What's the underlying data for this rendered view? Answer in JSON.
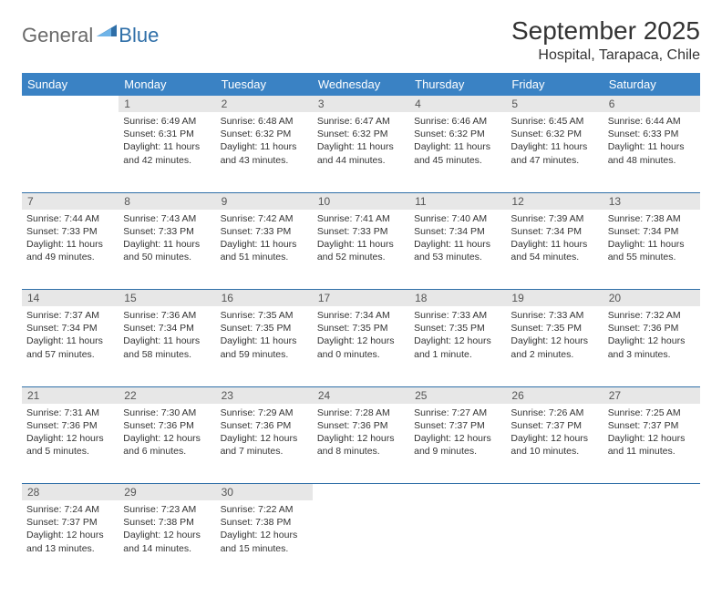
{
  "logo": {
    "text1": "General",
    "text2": "Blue"
  },
  "title": "September 2025",
  "location": "Hospital, Tarapaca, Chile",
  "colors": {
    "header_bg": "#3a82c4",
    "header_text": "#ffffff",
    "daynum_bg": "#e7e7e7",
    "rule": "#2f6fa8",
    "logo_gray": "#6a6a6a",
    "logo_blue": "#2f6fa8"
  },
  "weekdays": [
    "Sunday",
    "Monday",
    "Tuesday",
    "Wednesday",
    "Thursday",
    "Friday",
    "Saturday"
  ],
  "weeks": [
    [
      null,
      {
        "n": "1",
        "sr": "Sunrise: 6:49 AM",
        "ss": "Sunset: 6:31 PM",
        "d1": "Daylight: 11 hours",
        "d2": "and 42 minutes."
      },
      {
        "n": "2",
        "sr": "Sunrise: 6:48 AM",
        "ss": "Sunset: 6:32 PM",
        "d1": "Daylight: 11 hours",
        "d2": "and 43 minutes."
      },
      {
        "n": "3",
        "sr": "Sunrise: 6:47 AM",
        "ss": "Sunset: 6:32 PM",
        "d1": "Daylight: 11 hours",
        "d2": "and 44 minutes."
      },
      {
        "n": "4",
        "sr": "Sunrise: 6:46 AM",
        "ss": "Sunset: 6:32 PM",
        "d1": "Daylight: 11 hours",
        "d2": "and 45 minutes."
      },
      {
        "n": "5",
        "sr": "Sunrise: 6:45 AM",
        "ss": "Sunset: 6:32 PM",
        "d1": "Daylight: 11 hours",
        "d2": "and 47 minutes."
      },
      {
        "n": "6",
        "sr": "Sunrise: 6:44 AM",
        "ss": "Sunset: 6:33 PM",
        "d1": "Daylight: 11 hours",
        "d2": "and 48 minutes."
      }
    ],
    [
      {
        "n": "7",
        "sr": "Sunrise: 7:44 AM",
        "ss": "Sunset: 7:33 PM",
        "d1": "Daylight: 11 hours",
        "d2": "and 49 minutes."
      },
      {
        "n": "8",
        "sr": "Sunrise: 7:43 AM",
        "ss": "Sunset: 7:33 PM",
        "d1": "Daylight: 11 hours",
        "d2": "and 50 minutes."
      },
      {
        "n": "9",
        "sr": "Sunrise: 7:42 AM",
        "ss": "Sunset: 7:33 PM",
        "d1": "Daylight: 11 hours",
        "d2": "and 51 minutes."
      },
      {
        "n": "10",
        "sr": "Sunrise: 7:41 AM",
        "ss": "Sunset: 7:33 PM",
        "d1": "Daylight: 11 hours",
        "d2": "and 52 minutes."
      },
      {
        "n": "11",
        "sr": "Sunrise: 7:40 AM",
        "ss": "Sunset: 7:34 PM",
        "d1": "Daylight: 11 hours",
        "d2": "and 53 minutes."
      },
      {
        "n": "12",
        "sr": "Sunrise: 7:39 AM",
        "ss": "Sunset: 7:34 PM",
        "d1": "Daylight: 11 hours",
        "d2": "and 54 minutes."
      },
      {
        "n": "13",
        "sr": "Sunrise: 7:38 AM",
        "ss": "Sunset: 7:34 PM",
        "d1": "Daylight: 11 hours",
        "d2": "and 55 minutes."
      }
    ],
    [
      {
        "n": "14",
        "sr": "Sunrise: 7:37 AM",
        "ss": "Sunset: 7:34 PM",
        "d1": "Daylight: 11 hours",
        "d2": "and 57 minutes."
      },
      {
        "n": "15",
        "sr": "Sunrise: 7:36 AM",
        "ss": "Sunset: 7:34 PM",
        "d1": "Daylight: 11 hours",
        "d2": "and 58 minutes."
      },
      {
        "n": "16",
        "sr": "Sunrise: 7:35 AM",
        "ss": "Sunset: 7:35 PM",
        "d1": "Daylight: 11 hours",
        "d2": "and 59 minutes."
      },
      {
        "n": "17",
        "sr": "Sunrise: 7:34 AM",
        "ss": "Sunset: 7:35 PM",
        "d1": "Daylight: 12 hours",
        "d2": "and 0 minutes."
      },
      {
        "n": "18",
        "sr": "Sunrise: 7:33 AM",
        "ss": "Sunset: 7:35 PM",
        "d1": "Daylight: 12 hours",
        "d2": "and 1 minute."
      },
      {
        "n": "19",
        "sr": "Sunrise: 7:33 AM",
        "ss": "Sunset: 7:35 PM",
        "d1": "Daylight: 12 hours",
        "d2": "and 2 minutes."
      },
      {
        "n": "20",
        "sr": "Sunrise: 7:32 AM",
        "ss": "Sunset: 7:36 PM",
        "d1": "Daylight: 12 hours",
        "d2": "and 3 minutes."
      }
    ],
    [
      {
        "n": "21",
        "sr": "Sunrise: 7:31 AM",
        "ss": "Sunset: 7:36 PM",
        "d1": "Daylight: 12 hours",
        "d2": "and 5 minutes."
      },
      {
        "n": "22",
        "sr": "Sunrise: 7:30 AM",
        "ss": "Sunset: 7:36 PM",
        "d1": "Daylight: 12 hours",
        "d2": "and 6 minutes."
      },
      {
        "n": "23",
        "sr": "Sunrise: 7:29 AM",
        "ss": "Sunset: 7:36 PM",
        "d1": "Daylight: 12 hours",
        "d2": "and 7 minutes."
      },
      {
        "n": "24",
        "sr": "Sunrise: 7:28 AM",
        "ss": "Sunset: 7:36 PM",
        "d1": "Daylight: 12 hours",
        "d2": "and 8 minutes."
      },
      {
        "n": "25",
        "sr": "Sunrise: 7:27 AM",
        "ss": "Sunset: 7:37 PM",
        "d1": "Daylight: 12 hours",
        "d2": "and 9 minutes."
      },
      {
        "n": "26",
        "sr": "Sunrise: 7:26 AM",
        "ss": "Sunset: 7:37 PM",
        "d1": "Daylight: 12 hours",
        "d2": "and 10 minutes."
      },
      {
        "n": "27",
        "sr": "Sunrise: 7:25 AM",
        "ss": "Sunset: 7:37 PM",
        "d1": "Daylight: 12 hours",
        "d2": "and 11 minutes."
      }
    ],
    [
      {
        "n": "28",
        "sr": "Sunrise: 7:24 AM",
        "ss": "Sunset: 7:37 PM",
        "d1": "Daylight: 12 hours",
        "d2": "and 13 minutes."
      },
      {
        "n": "29",
        "sr": "Sunrise: 7:23 AM",
        "ss": "Sunset: 7:38 PM",
        "d1": "Daylight: 12 hours",
        "d2": "and 14 minutes."
      },
      {
        "n": "30",
        "sr": "Sunrise: 7:22 AM",
        "ss": "Sunset: 7:38 PM",
        "d1": "Daylight: 12 hours",
        "d2": "and 15 minutes."
      },
      null,
      null,
      null,
      null
    ]
  ]
}
